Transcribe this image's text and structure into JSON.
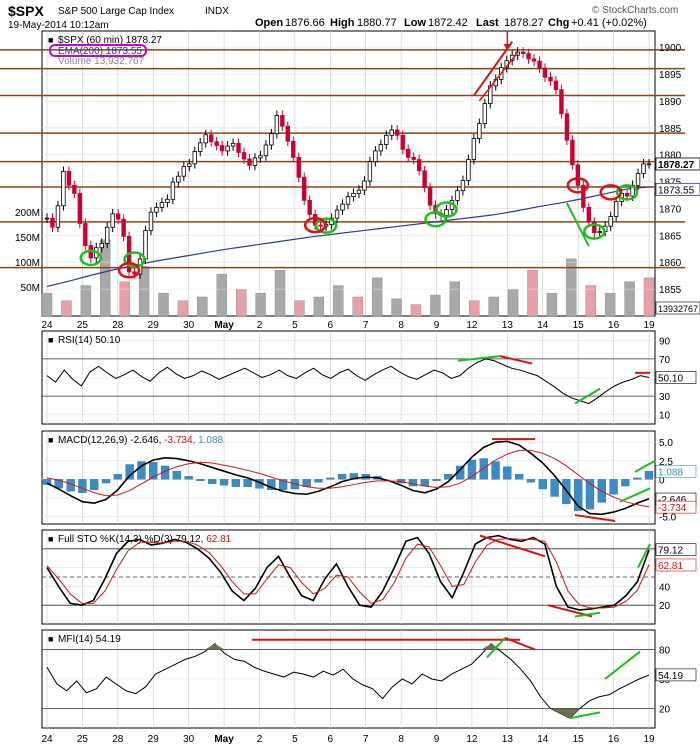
{
  "header": {
    "symbol": "$SPX",
    "name": "S&P 500 Large Cap Index",
    "exchange": "INDX",
    "date_time": "19-May-2014 10:12am",
    "open_label": "Open",
    "open": "1876.66",
    "high_label": "High",
    "high": "1880.77",
    "low_label": "Low",
    "low": "1872.42",
    "last_label": "Last",
    "last": "1878.27",
    "chg_label": "Chg",
    "chg": "+0.41 (+0.02%)",
    "watermark": "© StockCharts.com"
  },
  "colors": {
    "up": "#000000",
    "down": "#cc0033",
    "ema": "#2b3a9a",
    "support_line": "#8b4513",
    "volume_up": "#a9a9a9",
    "volume_down": "#e8a0a8",
    "highlight_ring": "#cc00cc",
    "annotation_green": "#19c219",
    "annotation_red": "#e01010",
    "indicator_line": "#000000",
    "signal_line": "#e01010",
    "histogram": "#3a8cc4",
    "mfi_fill": "#6e6e50"
  },
  "x_axis": {
    "labels": [
      "24",
      "25",
      "28",
      "29",
      "30",
      "May",
      "2",
      "5",
      "6",
      "7",
      "8",
      "9",
      "12",
      "13",
      "14",
      "15",
      "16",
      "19"
    ]
  },
  "chart_data": [
    {
      "type": "candlestick",
      "title": "$SPX (60 min) 1878.27",
      "legend": [
        {
          "label": "$SPX (60 min) 1878.27"
        },
        {
          "label": "EMA(200) 1873.55"
        },
        {
          "label": "Volume 13,932,767"
        }
      ],
      "ylim": [
        1850,
        1903
      ],
      "y_ticks": [
        1855,
        1860,
        1865,
        1870,
        1875,
        1880,
        1885,
        1890,
        1895,
        1900
      ],
      "y_tick_labels": [
        "1855",
        "1860",
        "1865",
        "1870",
        "1875",
        "1880",
        "1885",
        "1890",
        "1895",
        "1900"
      ],
      "last_value_labels": [
        "1878.27",
        "1873.55"
      ],
      "volume_tick_labels": [
        "200M",
        "150M",
        "100M",
        "50M"
      ],
      "volume_last_label": "13932767",
      "horizontal_levels": [
        1899.5,
        1896,
        1891,
        1884,
        1878.7,
        1874,
        1867.5,
        1859
      ],
      "price": [
        1868.2,
        1866.5,
        1870.5,
        1876.9,
        1874.3,
        1872.8,
        1867.2,
        1863.1,
        1860.8,
        1862.7,
        1863.5,
        1866.5,
        1869.0,
        1868.0,
        1864.8,
        1858.2,
        1857.8,
        1860.6,
        1865.9,
        1869.3,
        1870.2,
        1871.1,
        1871.7,
        1874.9,
        1876.0,
        1877.8,
        1878.3,
        1880.6,
        1882.2,
        1883.7,
        1882.4,
        1881.7,
        1880.7,
        1881.6,
        1882.1,
        1880.4,
        1879.2,
        1878.0,
        1879.4,
        1879.8,
        1881.8,
        1883.9,
        1887.3,
        1885.3,
        1882.5,
        1879.5,
        1875.8,
        1871.5,
        1868.9,
        1866.9,
        1866.7,
        1867.0,
        1868.2,
        1869.7,
        1870.8,
        1872.2,
        1872.8,
        1873.4,
        1875.1,
        1878.7,
        1880.7,
        1881.9,
        1883.6,
        1884.6,
        1883.6,
        1881.0,
        1879.5,
        1879.1,
        1877.0,
        1873.9,
        1870.6,
        1869.0,
        1868.7,
        1869.8,
        1871.5,
        1873.3,
        1875.2,
        1879.1,
        1883.0,
        1885.8,
        1889.5,
        1892.8,
        1894.0,
        1896.2,
        1897.5,
        1898.5,
        1899.1,
        1898.8,
        1897.8,
        1897.4,
        1896.1,
        1894.4,
        1893.7,
        1892.1,
        1887.6,
        1882.7,
        1878.1,
        1874.3,
        1870.2,
        1867.5,
        1865.5,
        1865.7,
        1866.7,
        1868.5,
        1871.3,
        1872.8,
        1872.3,
        1874.3,
        1876.5,
        1878.3,
        1878.3
      ],
      "ema200": [
        1855.5,
        1856.5,
        1857.6,
        1858.6,
        1859.5,
        1860.3,
        1861.0,
        1861.7,
        1862.4,
        1863.0,
        1863.6,
        1864.2,
        1864.8,
        1865.3,
        1865.8,
        1866.3,
        1866.8,
        1867.3,
        1867.8,
        1868.3,
        1868.8,
        1869.5,
        1870.3,
        1871.0,
        1871.8,
        1872.7,
        1873.6,
        1874.0
      ],
      "volume": [
        60,
        40,
        80,
        200,
        90,
        130,
        60,
        40,
        50,
        110,
        70,
        60,
        120,
        40,
        50,
        80,
        50,
        100,
        45,
        30,
        55,
        90,
        40,
        50,
        70,
        120,
        60,
        150,
        80,
        60,
        90,
        100
      ],
      "volume_ylim": [
        0,
        210
      ]
    },
    {
      "type": "line",
      "title": "RSI(14) 50.10",
      "ylim": [
        0,
        100
      ],
      "y_ticks": [
        10,
        30,
        50,
        70,
        90
      ],
      "y_tick_labels": [
        "10",
        "30",
        "50",
        "70",
        "90"
      ],
      "ref_lines": [
        30,
        70
      ],
      "last_value_label": "50.10",
      "series": [
        {
          "values": [
            52,
            45,
            58,
            48,
            41,
            56,
            62,
            55,
            49,
            53,
            58,
            51,
            46,
            55,
            61,
            54,
            49,
            52,
            57,
            53,
            48,
            52,
            56,
            60,
            55,
            50,
            53,
            58,
            52,
            49,
            55,
            60,
            53,
            49,
            55,
            59,
            52,
            47,
            53,
            58,
            62,
            56,
            51,
            48,
            53,
            58,
            55,
            49,
            52,
            60,
            66,
            70,
            68,
            64,
            60,
            58,
            55,
            52,
            46,
            40,
            33,
            28,
            25,
            22,
            28,
            35,
            41,
            45,
            48,
            52,
            50
          ]
        }
      ]
    },
    {
      "type": "line",
      "title": "MACD(12,26,9) -2.646, -3.734, 1.088",
      "ylim": [
        -6,
        6.5
      ],
      "y_ticks": [
        -5,
        -2.5,
        0,
        2.5,
        5
      ],
      "y_tick_labels": [
        "-5.0",
        "-2.5",
        "0",
        "2.5",
        "5.0"
      ],
      "last_value_labels": [
        "1.088",
        "-2.646",
        "-3.734"
      ],
      "series": [
        {
          "name": "MACD",
          "values": [
            -0.5,
            -1.3,
            -2.2,
            -3.0,
            -3.2,
            -2.7,
            -1.4,
            0.5,
            1.8,
            2.6,
            2.9,
            2.8,
            2.5,
            2.1,
            1.6,
            1.1,
            0.6,
            0.2,
            -0.4,
            -1.1,
            -1.6,
            -1.9,
            -2.0,
            -1.6,
            -1.0,
            -0.3,
            0.1,
            0.3,
            0.2,
            -0.2,
            -0.8,
            -1.5,
            -1.8,
            -1.3,
            -0.3,
            1.3,
            3.0,
            4.3,
            5.0,
            5.1,
            4.6,
            3.5,
            2.2,
            0.5,
            -1.5,
            -3.6,
            -4.6,
            -4.7,
            -4.4,
            -3.9,
            -3.2,
            -2.6
          ]
        },
        {
          "name": "Signal",
          "values": [
            0.2,
            -0.1,
            -0.6,
            -1.2,
            -1.8,
            -2.2,
            -2.1,
            -1.5,
            -0.6,
            0.3,
            1.1,
            1.7,
            2.1,
            2.3,
            2.2,
            1.9,
            1.6,
            1.2,
            0.8,
            0.3,
            -0.2,
            -0.6,
            -1.0,
            -1.2,
            -1.2,
            -1.0,
            -0.7,
            -0.4,
            -0.2,
            -0.2,
            -0.3,
            -0.6,
            -0.9,
            -1.1,
            -1.0,
            -0.5,
            0.4,
            1.5,
            2.6,
            3.4,
            3.9,
            3.9,
            3.5,
            2.8,
            1.8,
            0.6,
            -0.6,
            -1.6,
            -2.4,
            -3.0,
            -3.4,
            -3.7
          ]
        }
      ]
    },
    {
      "type": "line",
      "title": "Full STO %K(14,3) %D(3) 79.12, 62.81",
      "ylim": [
        0,
        100
      ],
      "y_ticks": [
        20,
        40,
        60,
        80
      ],
      "y_tick_labels": [
        "20",
        "40",
        "60",
        "80"
      ],
      "ref_lines": [
        20,
        50,
        80
      ],
      "last_value_labels": [
        "79.12",
        "62.81"
      ],
      "series": [
        {
          "name": "%K",
          "values": [
            60,
            40,
            22,
            20,
            25,
            48,
            75,
            88,
            90,
            84,
            86,
            90,
            87,
            80,
            70,
            55,
            35,
            25,
            38,
            60,
            72,
            50,
            30,
            25,
            48,
            64,
            40,
            20,
            18,
            35,
            60,
            88,
            92,
            75,
            45,
            28,
            55,
            85,
            92,
            94,
            90,
            88,
            92,
            85,
            40,
            18,
            15,
            16,
            18,
            20,
            30,
            45,
            79
          ]
        },
        {
          "name": "%D",
          "values": [
            62,
            48,
            32,
            22,
            22,
            35,
            58,
            78,
            87,
            87,
            86,
            88,
            88,
            84,
            76,
            62,
            45,
            32,
            32,
            48,
            63,
            60,
            44,
            32,
            38,
            52,
            50,
            34,
            22,
            26,
            44,
            70,
            85,
            82,
            62,
            40,
            42,
            66,
            84,
            90,
            91,
            90,
            90,
            88,
            66,
            35,
            20,
            17,
            17,
            18,
            24,
            36,
            63
          ]
        }
      ]
    },
    {
      "type": "line",
      "title": "MFI(14) 54.19",
      "ylim": [
        0,
        100
      ],
      "y_ticks": [
        20,
        50,
        80
      ],
      "y_tick_labels": [
        "20",
        "50",
        "80"
      ],
      "ref_lines": [
        20,
        80
      ],
      "last_value_label": "54.19",
      "series": [
        {
          "values": [
            62,
            45,
            38,
            48,
            36,
            40,
            52,
            45,
            38,
            35,
            42,
            55,
            60,
            65,
            70,
            73,
            78,
            86,
            76,
            70,
            68,
            62,
            58,
            55,
            52,
            57,
            55,
            52,
            58,
            54,
            60,
            50,
            44,
            40,
            30,
            42,
            50,
            45,
            55,
            50,
            48,
            55,
            60,
            65,
            75,
            86,
            78,
            70,
            60,
            48,
            32,
            20,
            15,
            10,
            20,
            28,
            32,
            34,
            40,
            45,
            50,
            54
          ]
        }
      ]
    }
  ]
}
